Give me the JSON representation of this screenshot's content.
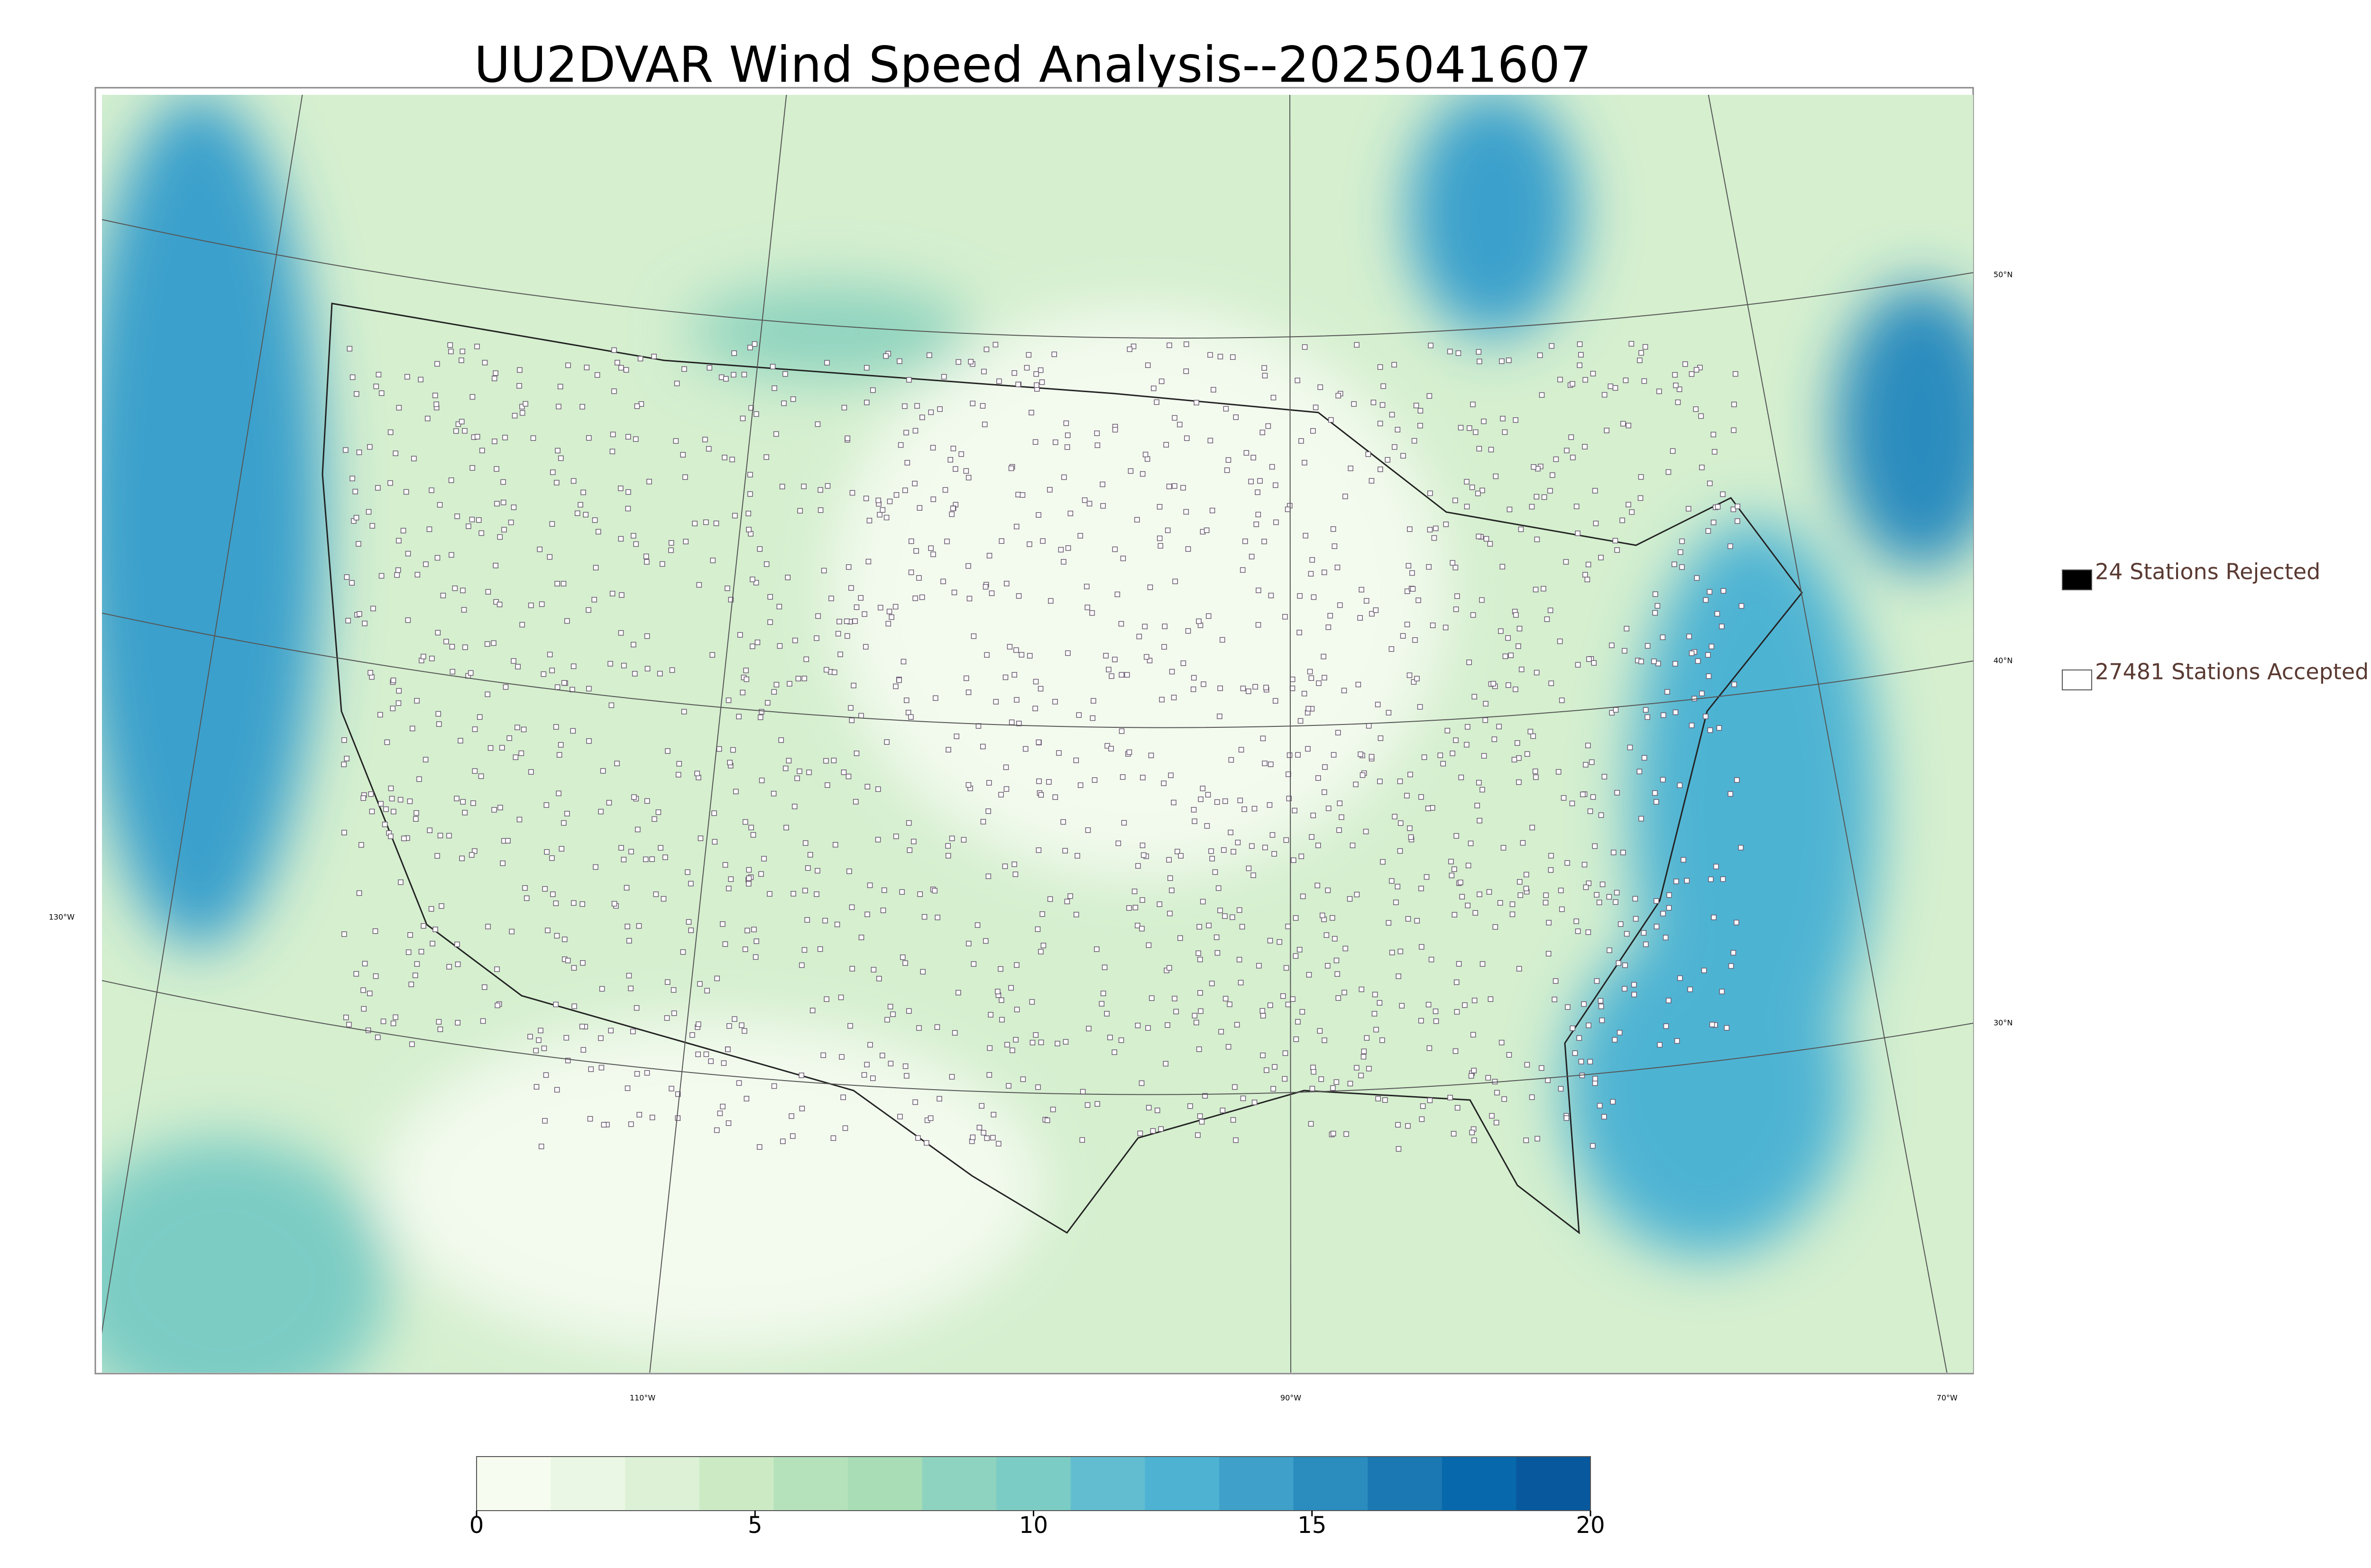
{
  "title": "UU2DVAR Wind Speed Analysis--2025041607",
  "legend": [
    {
      "label": "24 Stations Rejected",
      "color": "#000000"
    },
    {
      "label": "27481 Stations Accepted",
      "color": "#ffffff"
    }
  ],
  "latitude_labels": [
    "50°N",
    "40°N",
    "30°N"
  ],
  "longitude_labels": [
    "130°W",
    "110°W",
    "90°W",
    "70°W"
  ],
  "colorbar": {
    "lim": [
      0,
      20
    ],
    "ticks": [
      0,
      5,
      10,
      15,
      20
    ],
    "colors": [
      "#f7fcf0",
      "#eaf7e4",
      "#dcf1d6",
      "#ccebc5",
      "#b5e2bb",
      "#a8ddb5",
      "#8ed3bf",
      "#7bccc4",
      "#62bdd0",
      "#4eb3d3",
      "#3fa0c9",
      "#2b8cbe",
      "#1b78b2",
      "#0868ac",
      "#08589e"
    ]
  }
}
